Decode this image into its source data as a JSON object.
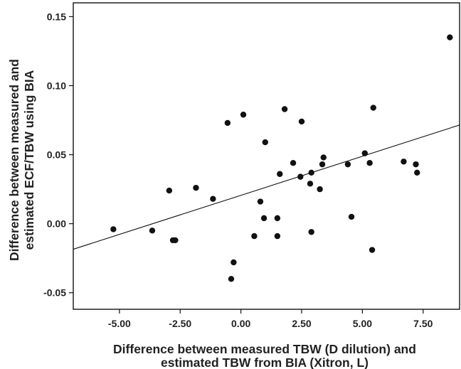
{
  "chart_data": {
    "type": "scatter",
    "xlabel": [
      "Difference between measured TBW (D dilution) and",
      "estimated TBW from BIA (Xitron, L)"
    ],
    "ylabel": [
      "Difference between measured and",
      "estimated ECF/TBW using BIA"
    ],
    "xlim": [
      -6.9,
      9.0
    ],
    "ylim": [
      -0.062,
      0.16
    ],
    "xticks": [
      -5.0,
      -2.5,
      0.0,
      2.5,
      5.0,
      7.5
    ],
    "xtick_labels": [
      "-5.00",
      "-2.50",
      "0.00",
      "2.50",
      "5.00",
      "7.50"
    ],
    "yticks": [
      -0.05,
      0.0,
      0.05,
      0.1,
      0.15
    ],
    "ytick_labels": [
      "-0.05",
      "0.00",
      "0.05",
      "0.10",
      "0.15"
    ],
    "grid": false,
    "points": [
      {
        "x": -5.25,
        "y": -0.004
      },
      {
        "x": -3.65,
        "y": -0.005
      },
      {
        "x": -2.95,
        "y": 0.024
      },
      {
        "x": -2.8,
        "y": -0.012
      },
      {
        "x": -2.7,
        "y": -0.012
      },
      {
        "x": -1.85,
        "y": 0.026
      },
      {
        "x": -1.15,
        "y": 0.018
      },
      {
        "x": -0.55,
        "y": 0.073
      },
      {
        "x": -0.4,
        "y": -0.04
      },
      {
        "x": -0.3,
        "y": -0.028
      },
      {
        "x": 0.1,
        "y": 0.079
      },
      {
        "x": 0.55,
        "y": -0.009
      },
      {
        "x": 0.8,
        "y": 0.016
      },
      {
        "x": 0.95,
        "y": 0.004
      },
      {
        "x": 1.0,
        "y": 0.059
      },
      {
        "x": 1.5,
        "y": 0.004
      },
      {
        "x": 1.5,
        "y": -0.009
      },
      {
        "x": 1.6,
        "y": 0.036
      },
      {
        "x": 1.8,
        "y": 0.083
      },
      {
        "x": 2.15,
        "y": 0.044
      },
      {
        "x": 2.45,
        "y": 0.034
      },
      {
        "x": 2.5,
        "y": 0.074
      },
      {
        "x": 2.85,
        "y": 0.029
      },
      {
        "x": 2.9,
        "y": 0.037
      },
      {
        "x": 2.9,
        "y": -0.006
      },
      {
        "x": 3.25,
        "y": 0.025
      },
      {
        "x": 3.35,
        "y": 0.043
      },
      {
        "x": 3.4,
        "y": 0.048
      },
      {
        "x": 4.4,
        "y": 0.043
      },
      {
        "x": 4.55,
        "y": 0.005
      },
      {
        "x": 5.1,
        "y": 0.051
      },
      {
        "x": 5.3,
        "y": 0.044
      },
      {
        "x": 5.4,
        "y": -0.019
      },
      {
        "x": 5.45,
        "y": 0.084
      },
      {
        "x": 6.7,
        "y": 0.045
      },
      {
        "x": 7.2,
        "y": 0.043
      },
      {
        "x": 7.25,
        "y": 0.037
      },
      {
        "x": 8.6,
        "y": 0.135
      }
    ],
    "fit_line": {
      "x": [
        -6.9,
        9.0
      ],
      "y": [
        -0.0185,
        0.0715
      ]
    },
    "colors": {
      "point": "#111111",
      "line": "#111111",
      "axis": "#111111"
    }
  }
}
